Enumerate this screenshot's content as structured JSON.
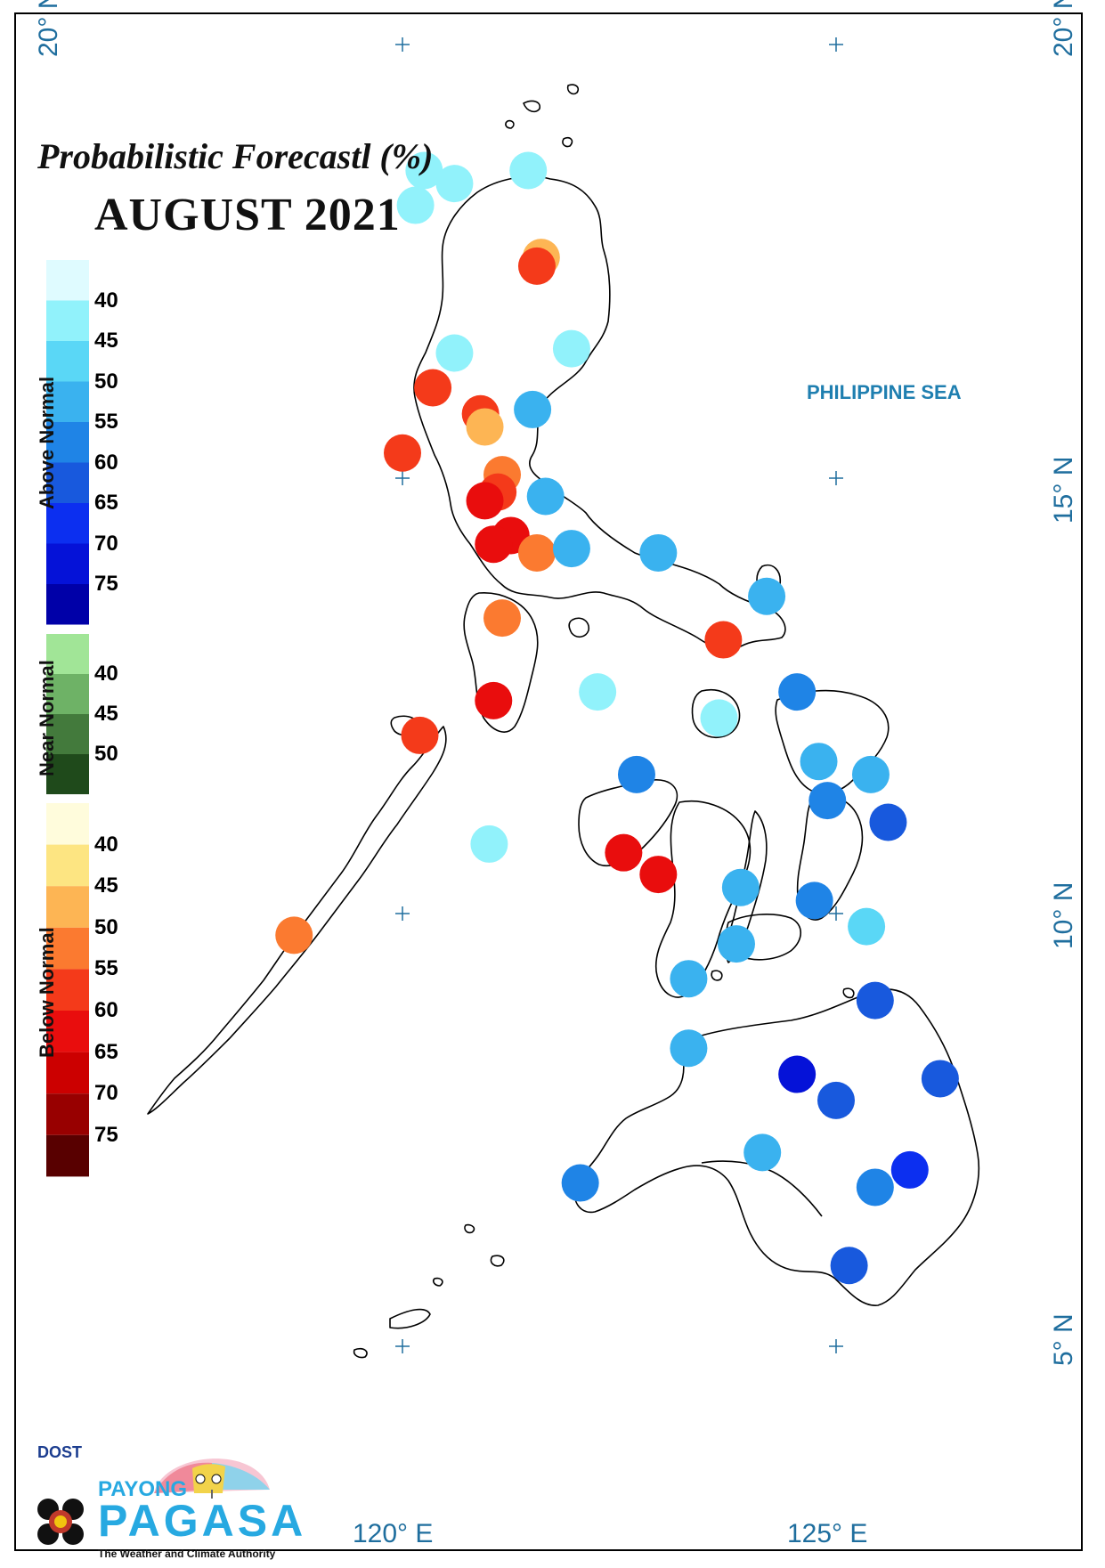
{
  "title": "Probabilistic Forecastl (%)",
  "subtitle": "AUGUST 2021",
  "sea_label": "PHILIPPINE SEA",
  "coordinates": {
    "lat_20_left": "20° N",
    "lat_20_right": "20° N",
    "lat_15": "15° N",
    "lat_10": "10° N",
    "lat_5": "5° N",
    "lon_120": "120° E",
    "lon_125": "125° E"
  },
  "legend": {
    "above": {
      "label": "Above Normal",
      "colors": [
        "#dffbff",
        "#91f2fb",
        "#5ad7f6",
        "#3ab2ef",
        "#1f84e6",
        "#1859dd",
        "#0c2ff0",
        "#0512d8",
        "#0000a8"
      ],
      "ticks": [
        "40",
        "45",
        "50",
        "55",
        "60",
        "65",
        "70",
        "75"
      ]
    },
    "near": {
      "label": "Near Normal",
      "colors": [
        "#a1e597",
        "#6eb266",
        "#437a3c",
        "#1f4a1b"
      ],
      "ticks": [
        "40",
        "45",
        "50"
      ]
    },
    "below": {
      "label": "Below Normal",
      "colors": [
        "#fffcdc",
        "#fde582",
        "#fdb554",
        "#fb7a30",
        "#f43a1a",
        "#e90d0d",
        "#cc0000",
        "#980000",
        "#580000"
      ],
      "ticks": [
        "40",
        "45",
        "50",
        "55",
        "60",
        "65",
        "70",
        "75"
      ]
    }
  },
  "stations": [
    {
      "lon": 120.25,
      "lat": 18.55,
      "category": "above",
      "level": 1
    },
    {
      "lon": 121.45,
      "lat": 18.55,
      "category": "above",
      "level": 1
    },
    {
      "lon": 120.15,
      "lat": 18.15,
      "category": "above",
      "level": 1
    },
    {
      "lon": 120.6,
      "lat": 18.4,
      "category": "above",
      "level": 1
    },
    {
      "lon": 121.6,
      "lat": 17.55,
      "category": "below",
      "level": 2
    },
    {
      "lon": 121.55,
      "lat": 17.45,
      "category": "below",
      "level": 4
    },
    {
      "lon": 120.6,
      "lat": 16.45,
      "category": "above",
      "level": 1
    },
    {
      "lon": 121.95,
      "lat": 16.5,
      "category": "above",
      "level": 1
    },
    {
      "lon": 120.35,
      "lat": 16.05,
      "category": "below",
      "level": 4
    },
    {
      "lon": 121.5,
      "lat": 15.8,
      "category": "above",
      "level": 3
    },
    {
      "lon": 120.9,
      "lat": 15.75,
      "category": "below",
      "level": 4
    },
    {
      "lon": 120.95,
      "lat": 15.6,
      "category": "below",
      "level": 2
    },
    {
      "lon": 120.0,
      "lat": 15.3,
      "category": "below",
      "level": 4
    },
    {
      "lon": 121.15,
      "lat": 15.05,
      "category": "below",
      "level": 3
    },
    {
      "lon": 121.1,
      "lat": 14.85,
      "category": "below",
      "level": 4
    },
    {
      "lon": 120.95,
      "lat": 14.75,
      "category": "below",
      "level": 5
    },
    {
      "lon": 121.65,
      "lat": 14.8,
      "category": "above",
      "level": 3
    },
    {
      "lon": 121.25,
      "lat": 14.35,
      "category": "below",
      "level": 5
    },
    {
      "lon": 121.05,
      "lat": 14.25,
      "category": "below",
      "level": 5
    },
    {
      "lon": 121.55,
      "lat": 14.15,
      "category": "below",
      "level": 3
    },
    {
      "lon": 121.95,
      "lat": 14.2,
      "category": "above",
      "level": 3
    },
    {
      "lon": 122.95,
      "lat": 14.15,
      "category": "above",
      "level": 3
    },
    {
      "lon": 124.2,
      "lat": 13.65,
      "category": "above",
      "level": 3
    },
    {
      "lon": 121.15,
      "lat": 13.4,
      "category": "below",
      "level": 3
    },
    {
      "lon": 123.7,
      "lat": 13.15,
      "category": "below",
      "level": 4
    },
    {
      "lon": 122.25,
      "lat": 12.55,
      "category": "above",
      "level": 1
    },
    {
      "lon": 123.65,
      "lat": 12.25,
      "category": "above",
      "level": 1
    },
    {
      "lon": 124.55,
      "lat": 12.55,
      "category": "above",
      "level": 4
    },
    {
      "lon": 121.05,
      "lat": 12.45,
      "category": "below",
      "level": 5
    },
    {
      "lon": 120.2,
      "lat": 12.05,
      "category": "below",
      "level": 4
    },
    {
      "lon": 124.8,
      "lat": 11.75,
      "category": "above",
      "level": 3
    },
    {
      "lon": 125.4,
      "lat": 11.6,
      "category": "above",
      "level": 3
    },
    {
      "lon": 122.7,
      "lat": 11.6,
      "category": "above",
      "level": 4
    },
    {
      "lon": 124.9,
      "lat": 11.3,
      "category": "above",
      "level": 4
    },
    {
      "lon": 125.6,
      "lat": 11.05,
      "category": "above",
      "level": 5
    },
    {
      "lon": 121.0,
      "lat": 10.8,
      "category": "above",
      "level": 1
    },
    {
      "lon": 122.55,
      "lat": 10.7,
      "category": "below",
      "level": 5
    },
    {
      "lon": 122.95,
      "lat": 10.45,
      "category": "below",
      "level": 5
    },
    {
      "lon": 123.9,
      "lat": 10.3,
      "category": "above",
      "level": 3
    },
    {
      "lon": 124.75,
      "lat": 10.15,
      "category": "above",
      "level": 4
    },
    {
      "lon": 125.35,
      "lat": 9.85,
      "category": "above",
      "level": 2
    },
    {
      "lon": 118.75,
      "lat": 9.75,
      "category": "below",
      "level": 3
    },
    {
      "lon": 123.85,
      "lat": 9.65,
      "category": "above",
      "level": 3
    },
    {
      "lon": 123.3,
      "lat": 9.25,
      "category": "above",
      "level": 3
    },
    {
      "lon": 125.45,
      "lat": 9.0,
      "category": "above",
      "level": 5
    },
    {
      "lon": 123.3,
      "lat": 8.45,
      "category": "above",
      "level": 3
    },
    {
      "lon": 124.55,
      "lat": 8.15,
      "category": "above",
      "level": 7
    },
    {
      "lon": 125.0,
      "lat": 7.85,
      "category": "above",
      "level": 5
    },
    {
      "lon": 126.2,
      "lat": 8.1,
      "category": "above",
      "level": 5
    },
    {
      "lon": 124.15,
      "lat": 7.25,
      "category": "above",
      "level": 3
    },
    {
      "lon": 125.85,
      "lat": 7.05,
      "category": "above",
      "level": 6
    },
    {
      "lon": 125.45,
      "lat": 6.85,
      "category": "above",
      "level": 4
    },
    {
      "lon": 122.05,
      "lat": 6.9,
      "category": "above",
      "level": 4
    },
    {
      "lon": 125.15,
      "lat": 5.95,
      "category": "above",
      "level": 5
    }
  ]
}
